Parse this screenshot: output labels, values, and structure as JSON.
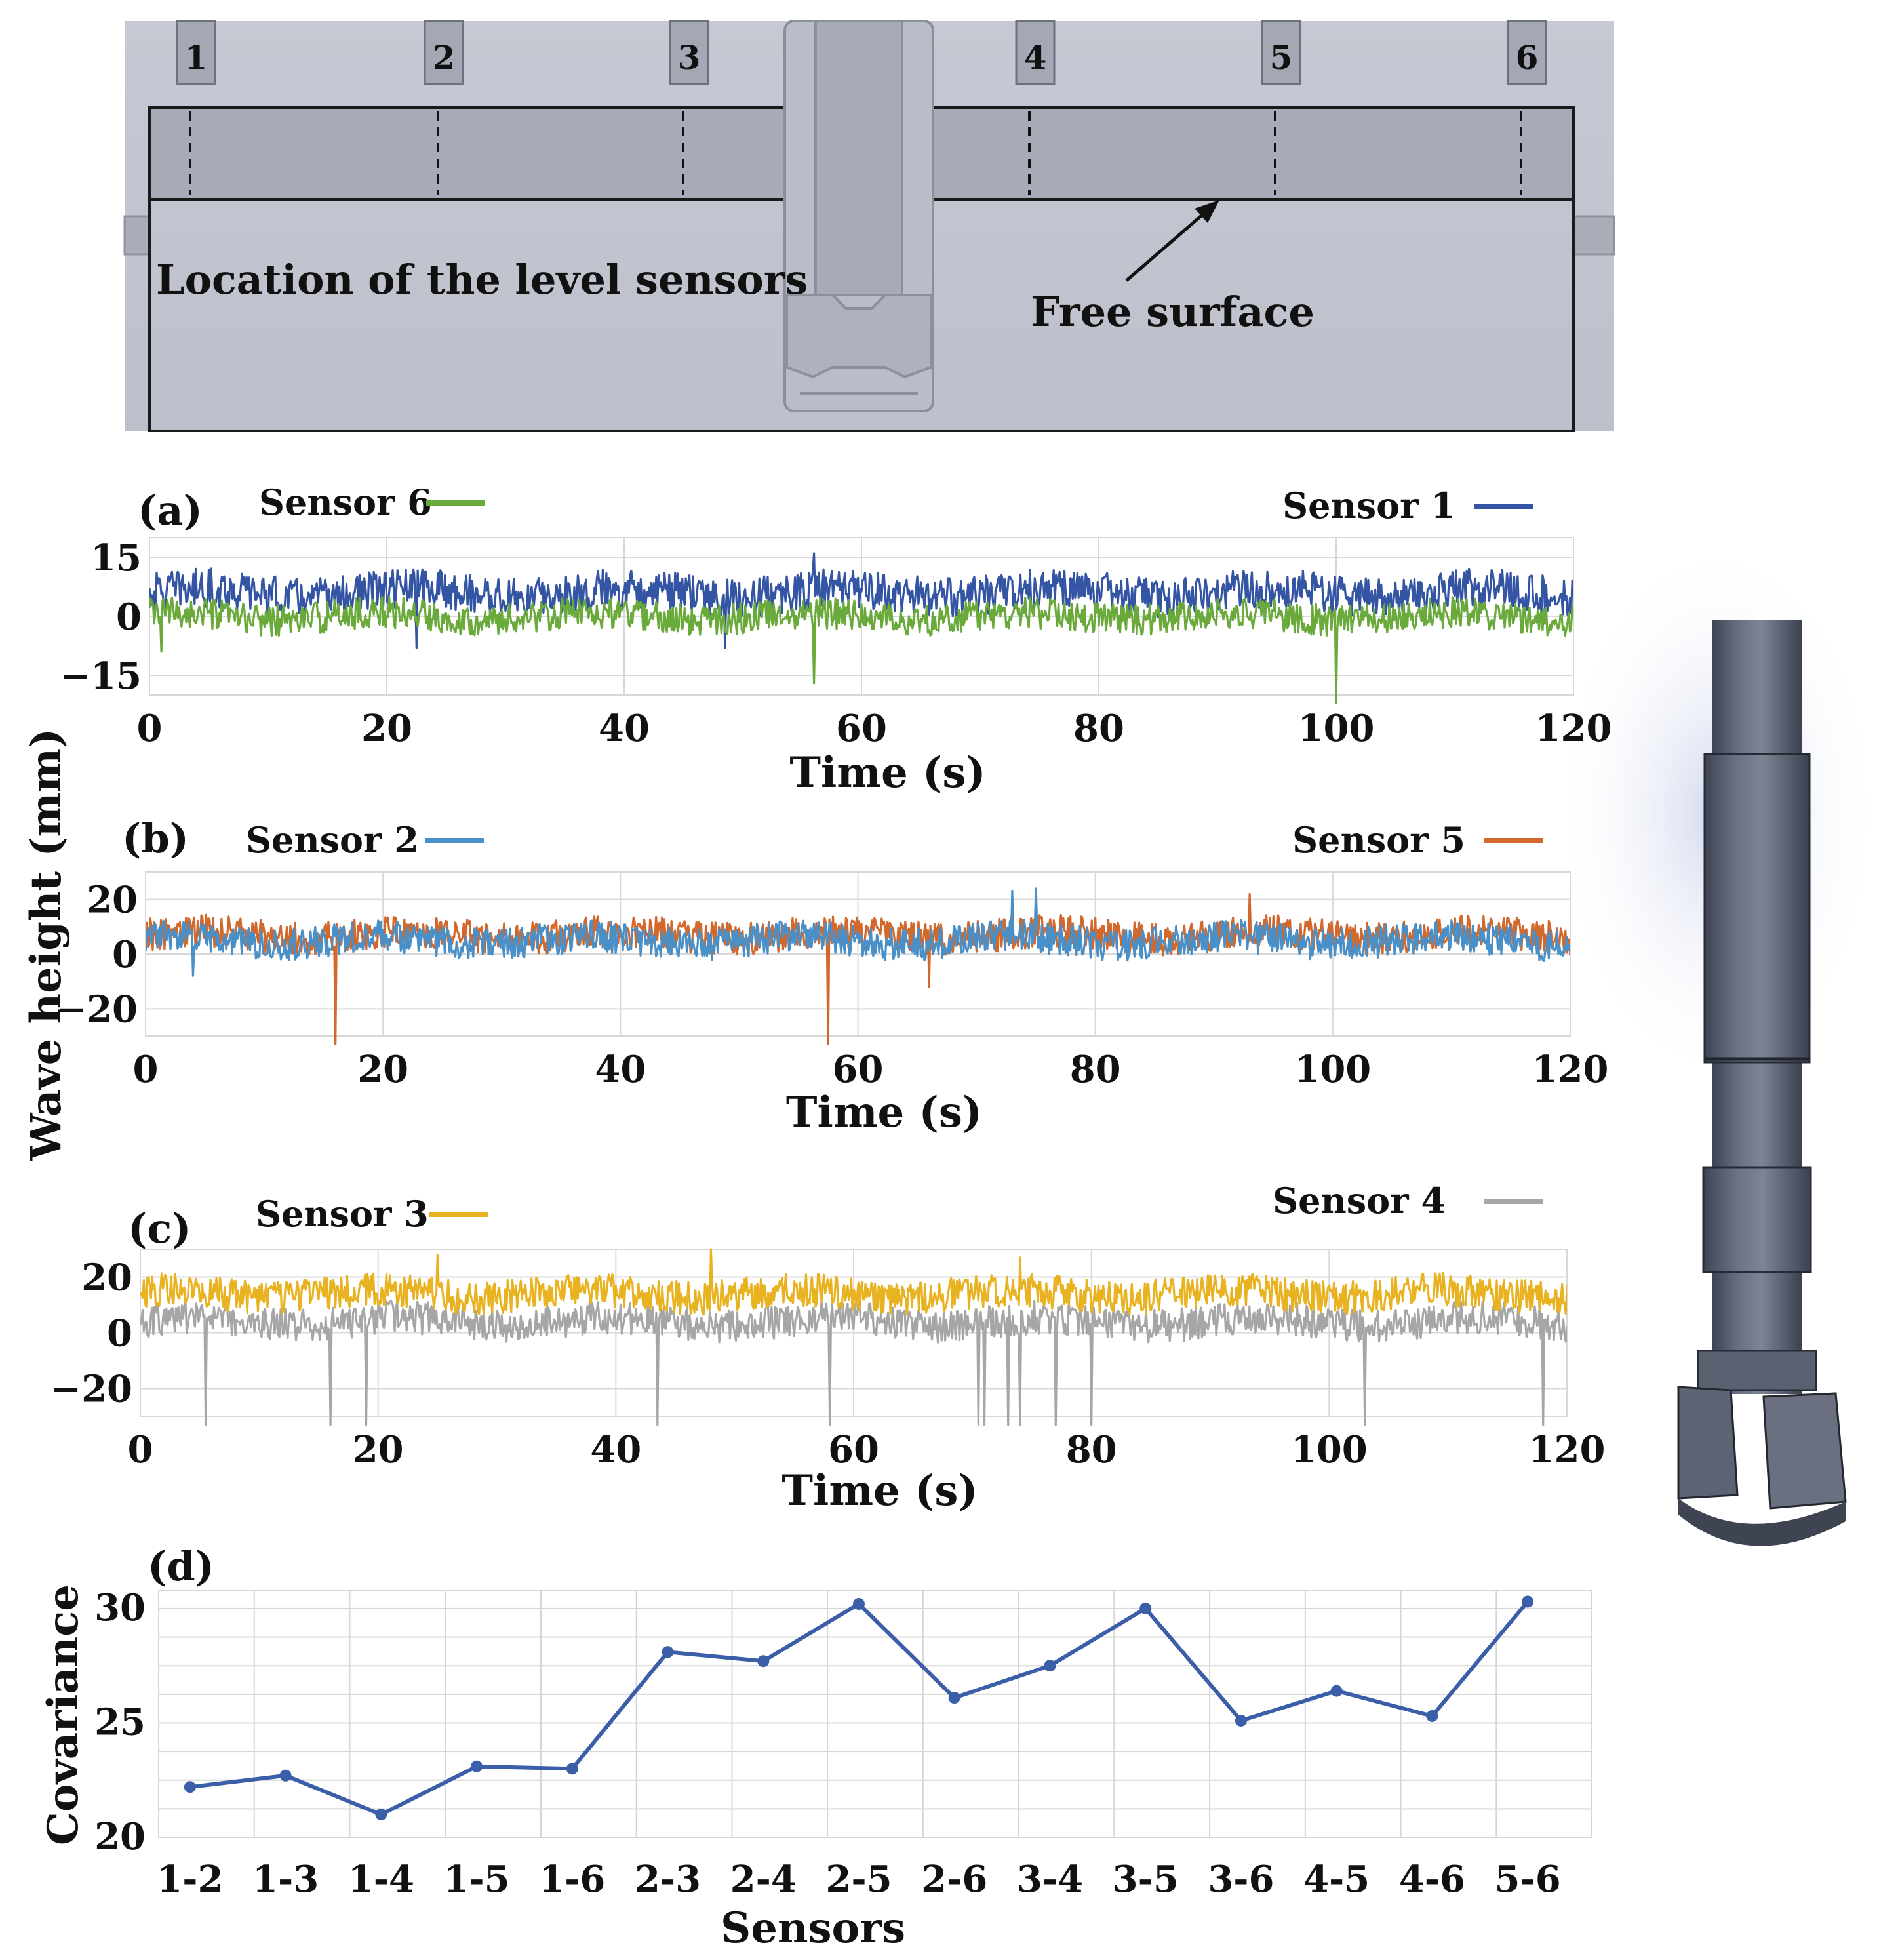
{
  "diagram": {
    "caption_sensors": "Location of the level sensors",
    "caption_surface": "Free surface",
    "sensor_numbers": [
      "1",
      "2",
      "3",
      "4",
      "5",
      "6"
    ]
  },
  "shared_ylabel": "Wave height (mm)",
  "chart_data": [
    {
      "type": "line",
      "panel": "(a)",
      "xlabel": "Time (s)",
      "xlim": [
        0,
        120
      ],
      "xticks": [
        "0",
        "20",
        "40",
        "60",
        "80",
        "100",
        "120"
      ],
      "ylim": [
        -20,
        20
      ],
      "yticks": [
        "15",
        "0",
        "−15"
      ],
      "ytick_values": [
        15,
        0,
        -15
      ],
      "grid": true,
      "legend": "top",
      "series": [
        {
          "name": "Sensor 1",
          "color": "#3454a4",
          "level": 6,
          "amp": 5,
          "spikes": [
            [
              22.5,
              -8
            ],
            [
              48.5,
              -8
            ],
            [
              56,
              16
            ]
          ]
        },
        {
          "name": "Sensor 6",
          "color": "#6aaa3a",
          "level": 0,
          "amp": 4,
          "spikes": [
            [
              56,
              -17
            ],
            [
              100,
              -22
            ],
            [
              1,
              -9
            ]
          ]
        }
      ]
    },
    {
      "type": "line",
      "panel": "(b)",
      "xlabel": "Time (s)",
      "xlim": [
        0,
        120
      ],
      "xticks": [
        "0",
        "20",
        "40",
        "60",
        "80",
        "100",
        "120"
      ],
      "ylim": [
        -30,
        30
      ],
      "yticks": [
        "20",
        "0",
        "−20"
      ],
      "ytick_values": [
        20,
        0,
        -20
      ],
      "grid": true,
      "legend": "top",
      "series": [
        {
          "name": "Sensor 5",
          "color": "#d2682c",
          "level": 7,
          "amp": 6,
          "spikes": [
            [
              16,
              -33
            ],
            [
              57.5,
              -33
            ],
            [
              93,
              22
            ],
            [
              66,
              -12
            ]
          ]
        },
        {
          "name": "Sensor 2",
          "color": "#4a90c8",
          "level": 5,
          "amp": 6,
          "spikes": [
            [
              75,
              24
            ],
            [
              73,
              23
            ],
            [
              4,
              -8
            ]
          ]
        }
      ]
    },
    {
      "type": "line",
      "panel": "(c)",
      "xlabel": "Time (s)",
      "xlim": [
        0,
        120
      ],
      "xticks": [
        "0",
        "20",
        "40",
        "60",
        "80",
        "100",
        "120"
      ],
      "ylim": [
        -30,
        30
      ],
      "yticks": [
        "20",
        "0",
        "−20"
      ],
      "ytick_values": [
        20,
        0,
        -20
      ],
      "grid": true,
      "legend": "top",
      "series": [
        {
          "name": "Sensor 4",
          "color": "#a6a6a6",
          "level": 4,
          "amp": 6,
          "spikes": [
            [
              5.5,
              -33
            ],
            [
              16,
              -33
            ],
            [
              19,
              -33
            ],
            [
              43.5,
              -33
            ],
            [
              58,
              -33
            ],
            [
              70.5,
              -33
            ],
            [
              71,
              -33
            ],
            [
              73,
              -33
            ],
            [
              74,
              -33
            ],
            [
              77,
              -33
            ],
            [
              80,
              -33
            ],
            [
              103,
              -33
            ],
            [
              118,
              -33
            ]
          ]
        },
        {
          "name": "Sensor 3",
          "color": "#e8b220",
          "level": 14,
          "amp": 6,
          "spikes": [
            [
              48,
              30
            ],
            [
              25,
              28
            ],
            [
              74,
              27
            ]
          ]
        }
      ]
    },
    {
      "type": "line",
      "panel": "(d)",
      "xlabel": "Sensors",
      "ylabel": "Covariance",
      "categories": [
        "1-2",
        "1-3",
        "1-4",
        "1-5",
        "1-6",
        "2-3",
        "2-4",
        "2-5",
        "2-6",
        "3-4",
        "3-5",
        "3-6",
        "4-5",
        "4-6",
        "5-6"
      ],
      "ylim": [
        20,
        30.8
      ],
      "yticks": [
        "30",
        "25",
        "20"
      ],
      "ytick_values": [
        30,
        25,
        20
      ],
      "grid": true,
      "series": [
        {
          "color": "#3a5ea8",
          "values": [
            22.2,
            22.7,
            21.0,
            23.1,
            23.0,
            28.1,
            27.7,
            30.2,
            26.1,
            27.5,
            30.0,
            25.1,
            26.4,
            25.3,
            30.3
          ]
        }
      ]
    }
  ]
}
